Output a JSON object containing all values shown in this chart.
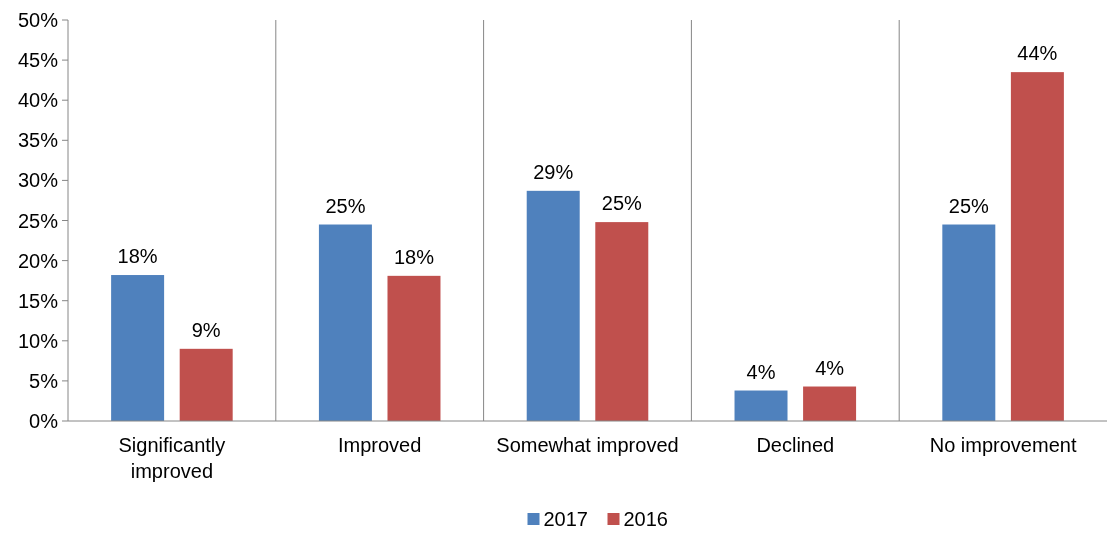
{
  "chart_data": {
    "type": "bar",
    "categories": [
      "Significantly improved",
      "Improved",
      "Somewhat improved",
      "Declined",
      "No improvement"
    ],
    "series": [
      {
        "name": "2017",
        "color": "#4f81bd",
        "values": [
          18.2,
          24.5,
          28.7,
          3.8,
          24.5
        ],
        "value_labels": [
          "18%",
          "25%",
          "29%",
          "4%",
          "25%"
        ]
      },
      {
        "name": "2016",
        "color": "#c0504d",
        "values": [
          9,
          18.1,
          24.8,
          4.3,
          43.5
        ],
        "value_labels": [
          "9%",
          "18%",
          "25%",
          "4%",
          "44%"
        ]
      }
    ],
    "ylim": [
      0,
      50
    ],
    "yticks": [
      {
        "value": 0,
        "label": "0%"
      },
      {
        "value": 5,
        "label": "5%"
      },
      {
        "value": 10,
        "label": "10%"
      },
      {
        "value": 15,
        "label": "15%"
      },
      {
        "value": 20,
        "label": "20%"
      },
      {
        "value": 25,
        "label": "25%"
      },
      {
        "value": 30,
        "label": "30%"
      },
      {
        "value": 35,
        "label": "35%"
      },
      {
        "value": 40,
        "label": "40%"
      },
      {
        "value": 45,
        "label": "45%"
      },
      {
        "value": 50,
        "label": "50%"
      }
    ],
    "grid": "x",
    "legend": "bottom"
  }
}
